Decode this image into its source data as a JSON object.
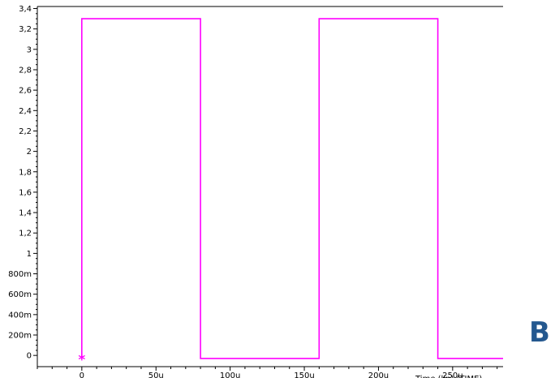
{
  "chart_data": {
    "type": "line",
    "title": "",
    "xlabel": "",
    "ylabel": "",
    "xlim": [
      -30,
      284
    ],
    "ylim": [
      -0.11,
      3.42
    ],
    "x_ticks": [
      {
        "value": 0,
        "label": "0"
      },
      {
        "value": 50,
        "label": "50u"
      },
      {
        "value": 100,
        "label": "100u"
      },
      {
        "value": 150,
        "label": "150u"
      },
      {
        "value": 200,
        "label": "200u"
      },
      {
        "value": 250,
        "label": "250u"
      }
    ],
    "y_ticks": [
      {
        "value": 3.4,
        "label": "3,4"
      },
      {
        "value": 3.2,
        "label": "3,2"
      },
      {
        "value": 3.0,
        "label": "3"
      },
      {
        "value": 2.8,
        "label": "2,8"
      },
      {
        "value": 2.6,
        "label": "2,6"
      },
      {
        "value": 2.4,
        "label": "2,4"
      },
      {
        "value": 2.2,
        "label": "2,2"
      },
      {
        "value": 2.0,
        "label": "2"
      },
      {
        "value": 1.8,
        "label": "1,8"
      },
      {
        "value": 1.6,
        "label": "1,6"
      },
      {
        "value": 1.4,
        "label": "1,4"
      },
      {
        "value": 1.2,
        "label": "1,2"
      },
      {
        "value": 1.0,
        "label": "1"
      },
      {
        "value": 0.8,
        "label": "800m"
      },
      {
        "value": 0.6,
        "label": "600m"
      },
      {
        "value": 0.4,
        "label": "400m"
      },
      {
        "value": 0.2,
        "label": "200m"
      },
      {
        "value": 0.0,
        "label": "0"
      }
    ],
    "grid": false,
    "series": [
      {
        "color": "#ff00ff",
        "x": [
          0,
          0,
          80,
          80,
          160,
          160,
          240,
          240,
          240,
          284
        ],
        "y": [
          -0.03,
          3.3,
          3.3,
          -0.03,
          -0.03,
          3.3,
          3.3,
          2.56,
          -0.03,
          -0.03
        ]
      }
    ],
    "marker": {
      "x": 0,
      "y": -0.03,
      "symbol": "*",
      "color": "#ff00ff"
    },
    "x_axis_label_partial": "Time (lin) (TIME)"
  },
  "panel_label": "B"
}
